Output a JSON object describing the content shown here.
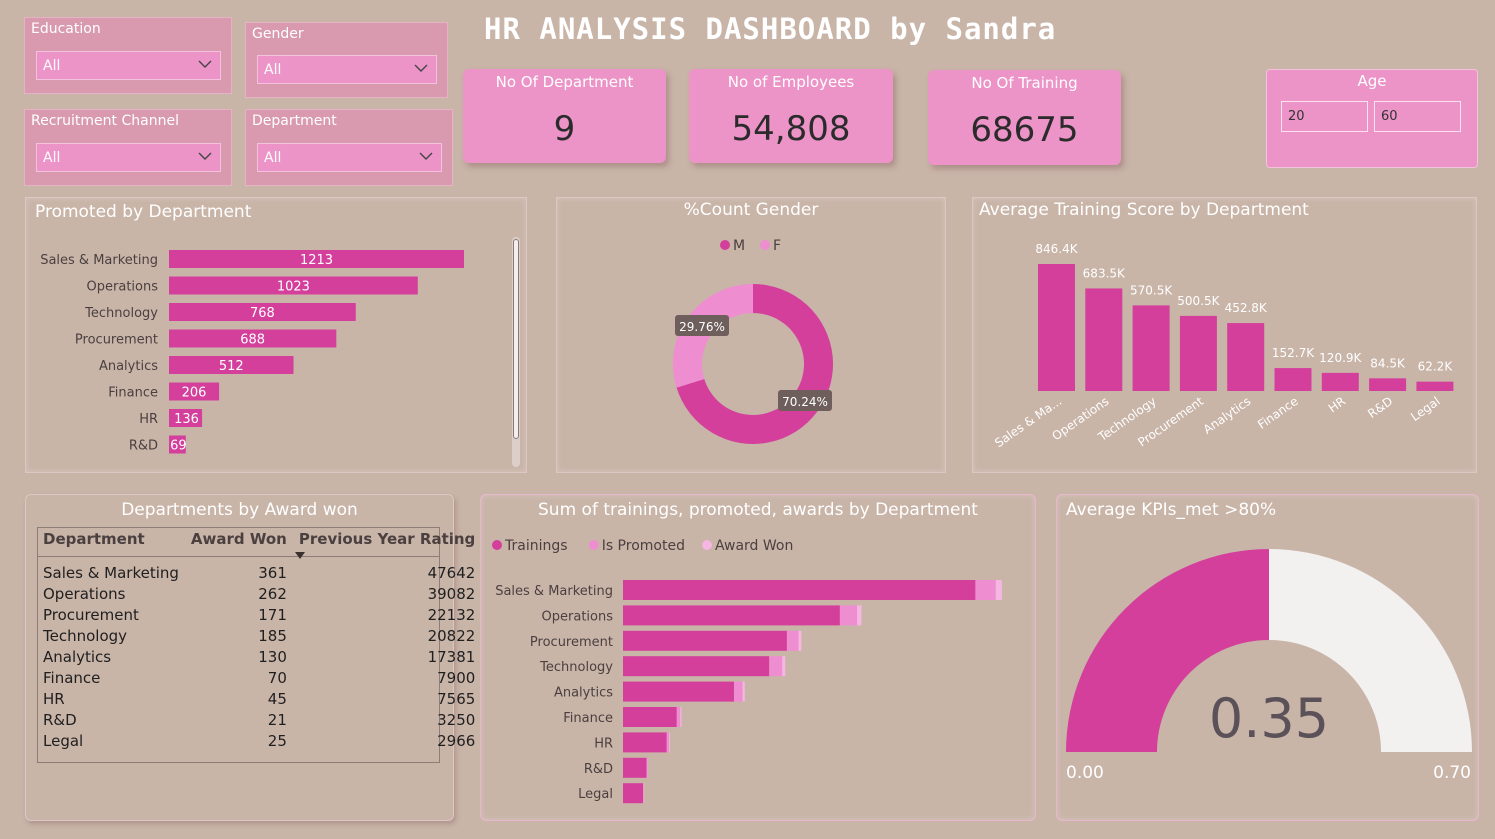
{
  "title": "HR ANALYSIS DASHBOARD by Sandra",
  "slicers": {
    "education": {
      "label": "Education",
      "value": "All"
    },
    "gender": {
      "label": "Gender",
      "value": "All"
    },
    "recruitment": {
      "label": "Recruitment Channel",
      "value": "All"
    },
    "department": {
      "label": "Department",
      "value": "All"
    }
  },
  "cards": {
    "departments": {
      "label": "No Of Department",
      "value": "9"
    },
    "employees": {
      "label": "No of Employees",
      "value": "54,808"
    },
    "training": {
      "label": "No Of Training",
      "value": "68675"
    }
  },
  "age": {
    "label": "Age",
    "min": "20",
    "max": "60"
  },
  "colors": {
    "pink": "#d43f9c",
    "light_pink": "#ee8ed0",
    "pale_pink": "#f5b6e2",
    "background": "#c9b4a8",
    "gauge_empty": "#f3f0f0"
  },
  "chart_data": [
    {
      "id": "promoted",
      "type": "bar",
      "orientation": "horizontal",
      "title": "Promoted by Department",
      "categories": [
        "Sales & Marketing",
        "Operations",
        "Technology",
        "Procurement",
        "Analytics",
        "Finance",
        "HR",
        "R&D"
      ],
      "values": [
        1213,
        1023,
        768,
        688,
        512,
        206,
        136,
        69
      ],
      "labels": [
        "1213",
        "1023",
        "768",
        "688",
        "512",
        "206",
        "136",
        "69"
      ],
      "xlim": [
        0,
        1213
      ]
    },
    {
      "id": "gender",
      "type": "pie",
      "title": "%Count Gender",
      "legend": [
        "M",
        "F"
      ],
      "values": [
        70.24,
        29.76
      ],
      "labels": [
        "70.24%",
        "29.76%"
      ],
      "legend_position": "top"
    },
    {
      "id": "avg_training",
      "type": "bar",
      "title": "Average Training Score by Department",
      "categories": [
        "Sales & Ma...",
        "Operations",
        "Technology",
        "Procurement",
        "Analytics",
        "Finance",
        "HR",
        "R&D",
        "Legal"
      ],
      "values": [
        846.4,
        683.5,
        570.5,
        500.5,
        452.8,
        152.7,
        120.9,
        84.5,
        62.2
      ],
      "labels": [
        "846.4K",
        "683.5K",
        "570.5K",
        "500.5K",
        "452.8K",
        "152.7K",
        "120.9K",
        "84.5K",
        "62.2K"
      ],
      "ylim": [
        0,
        846.4
      ]
    },
    {
      "id": "awards_table",
      "type": "table",
      "title": "Departments by Award won",
      "columns": [
        "Department",
        "Award Won",
        "Previous Year Rating"
      ],
      "rows": [
        [
          "Sales & Marketing",
          "361",
          "47642"
        ],
        [
          "Operations",
          "262",
          "39082"
        ],
        [
          "Procurement",
          "171",
          "22132"
        ],
        [
          "Technology",
          "185",
          "20822"
        ],
        [
          "Analytics",
          "130",
          "17381"
        ],
        [
          "Finance",
          "70",
          "7900"
        ],
        [
          "HR",
          "45",
          "7565"
        ],
        [
          "R&D",
          "21",
          "3250"
        ],
        [
          "Legal",
          "25",
          "2966"
        ]
      ]
    },
    {
      "id": "stacked",
      "type": "bar",
      "orientation": "horizontal",
      "stacked": true,
      "title": "Sum of trainings, promoted, awards by Department",
      "categories": [
        "Sales & Marketing",
        "Operations",
        "Procurement",
        "Technology",
        "Analytics",
        "Finance",
        "HR",
        "R&D",
        "Legal"
      ],
      "series": [
        {
          "name": "Trainings",
          "values": [
            20960,
            12900,
            9750,
            8700,
            6600,
            3200,
            2600,
            1400,
            1200
          ]
        },
        {
          "name": "Is Promoted",
          "values": [
            1213,
            1023,
            688,
            768,
            512,
            206,
            136,
            69,
            35
          ]
        },
        {
          "name": "Award Won",
          "values": [
            361,
            262,
            171,
            185,
            130,
            70,
            45,
            21,
            25
          ]
        }
      ],
      "legend_position": "top-left",
      "xlim": [
        0,
        22600
      ]
    },
    {
      "id": "kpi_gauge",
      "type": "gauge",
      "title": "Average KPIs_met >80%",
      "value": 0.35,
      "value_label": "0.35",
      "min": 0,
      "max": 0.7,
      "min_label": "0.00",
      "max_label": "0.70"
    }
  ]
}
